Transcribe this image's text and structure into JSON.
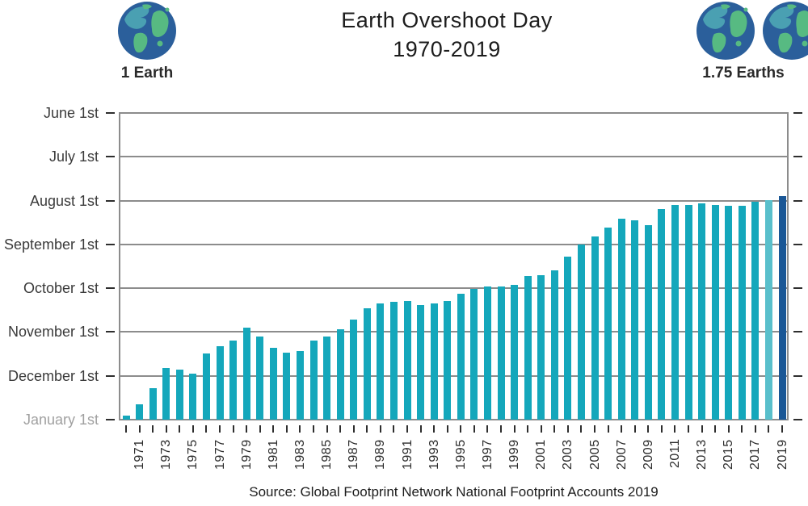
{
  "title": {
    "line1": "Earth Overshoot Day",
    "line2": "1970-2019"
  },
  "left_badge": {
    "label": "1 Earth",
    "icon": "earth-icon"
  },
  "right_badge": {
    "label": "1.75 Earths",
    "icon": "earth-icon-plus-partial-earth"
  },
  "source": "Source: Global Footprint Network National Footprint Accounts 2019",
  "colors": {
    "bar": "#14A7BB",
    "bar_2018_highlight": "#59BFCB",
    "bar_2019_highlight": "#1A5796",
    "grid": "#8C8C8C",
    "axis_ink": "#2E2E2E",
    "muted_label": "#A0A0A0",
    "earth_ocean": "#2B5F9B",
    "earth_land_green": "#57BA82",
    "earth_land_teal": "#4AA0B2"
  },
  "chart_data": {
    "type": "bar",
    "title": "Earth Overshoot Day",
    "subtitle": "1970-2019",
    "xlabel": "",
    "ylabel": "",
    "grid": true,
    "legend": "none",
    "y_axis": {
      "inverted_date_axis": true,
      "top_tick": "June 1st",
      "bottom_tick": "January 1st",
      "ticks": [
        "June 1st",
        "July 1st",
        "August 1st",
        "September 1st",
        "October 1st",
        "November 1st",
        "December 1st",
        "January 1st"
      ],
      "muted_tick": "January 1st",
      "ticks_on_both_sides": true
    },
    "x_axis": {
      "tick_every_year": true,
      "labeled_years": [
        1971,
        1973,
        1975,
        1977,
        1979,
        1981,
        1983,
        1985,
        1987,
        1989,
        1991,
        1993,
        1995,
        1997,
        1999,
        2001,
        2003,
        2005,
        2007,
        2009,
        2011,
        2013,
        2015,
        2017,
        2019
      ]
    },
    "series": [
      {
        "year": 1970,
        "overshoot_date": "Dec 29",
        "day_of_year": 363
      },
      {
        "year": 1971,
        "overshoot_date": "Dec 21",
        "day_of_year": 355
      },
      {
        "year": 1972,
        "overshoot_date": "Dec 10",
        "day_of_year": 344
      },
      {
        "year": 1973,
        "overshoot_date": "Nov 26",
        "day_of_year": 330
      },
      {
        "year": 1974,
        "overshoot_date": "Nov 27",
        "day_of_year": 331
      },
      {
        "year": 1975,
        "overshoot_date": "Nov 30",
        "day_of_year": 334
      },
      {
        "year": 1976,
        "overshoot_date": "Nov 16",
        "day_of_year": 320
      },
      {
        "year": 1977,
        "overshoot_date": "Nov 11",
        "day_of_year": 315
      },
      {
        "year": 1978,
        "overshoot_date": "Nov 7",
        "day_of_year": 311
      },
      {
        "year": 1979,
        "overshoot_date": "Oct 29",
        "day_of_year": 302
      },
      {
        "year": 1980,
        "overshoot_date": "Nov 4",
        "day_of_year": 308
      },
      {
        "year": 1981,
        "overshoot_date": "Nov 12",
        "day_of_year": 316
      },
      {
        "year": 1982,
        "overshoot_date": "Nov 15",
        "day_of_year": 319
      },
      {
        "year": 1983,
        "overshoot_date": "Nov 14",
        "day_of_year": 318
      },
      {
        "year": 1984,
        "overshoot_date": "Nov 7",
        "day_of_year": 311
      },
      {
        "year": 1985,
        "overshoot_date": "Nov 4",
        "day_of_year": 308
      },
      {
        "year": 1986,
        "overshoot_date": "Oct 30",
        "day_of_year": 303
      },
      {
        "year": 1987,
        "overshoot_date": "Oct 23",
        "day_of_year": 296
      },
      {
        "year": 1988,
        "overshoot_date": "Oct 15",
        "day_of_year": 288
      },
      {
        "year": 1989,
        "overshoot_date": "Oct 12",
        "day_of_year": 285
      },
      {
        "year": 1990,
        "overshoot_date": "Oct 11",
        "day_of_year": 284
      },
      {
        "year": 1991,
        "overshoot_date": "Oct 10",
        "day_of_year": 283
      },
      {
        "year": 1992,
        "overshoot_date": "Oct 13",
        "day_of_year": 286
      },
      {
        "year": 1993,
        "overshoot_date": "Oct 12",
        "day_of_year": 285
      },
      {
        "year": 1994,
        "overshoot_date": "Oct 10",
        "day_of_year": 283
      },
      {
        "year": 1995,
        "overshoot_date": "Oct 5",
        "day_of_year": 278
      },
      {
        "year": 1996,
        "overshoot_date": "Oct 2",
        "day_of_year": 275
      },
      {
        "year": 1997,
        "overshoot_date": "Sep 30",
        "day_of_year": 273
      },
      {
        "year": 1998,
        "overshoot_date": "Sep 30",
        "day_of_year": 273
      },
      {
        "year": 1999,
        "overshoot_date": "Sep 29",
        "day_of_year": 272
      },
      {
        "year": 2000,
        "overshoot_date": "Sep 23",
        "day_of_year": 266
      },
      {
        "year": 2001,
        "overshoot_date": "Sep 22",
        "day_of_year": 265
      },
      {
        "year": 2002,
        "overshoot_date": "Sep 19",
        "day_of_year": 262
      },
      {
        "year": 2003,
        "overshoot_date": "Sep 9",
        "day_of_year": 252
      },
      {
        "year": 2004,
        "overshoot_date": "Sep 1",
        "day_of_year": 244
      },
      {
        "year": 2005,
        "overshoot_date": "Aug 26",
        "day_of_year": 238
      },
      {
        "year": 2006,
        "overshoot_date": "Aug 20",
        "day_of_year": 232
      },
      {
        "year": 2007,
        "overshoot_date": "Aug 14",
        "day_of_year": 226
      },
      {
        "year": 2008,
        "overshoot_date": "Aug 15",
        "day_of_year": 227
      },
      {
        "year": 2009,
        "overshoot_date": "Aug 18",
        "day_of_year": 230
      },
      {
        "year": 2010,
        "overshoot_date": "Aug 7",
        "day_of_year": 219
      },
      {
        "year": 2011,
        "overshoot_date": "Aug 4",
        "day_of_year": 216
      },
      {
        "year": 2012,
        "overshoot_date": "Aug 4",
        "day_of_year": 216
      },
      {
        "year": 2013,
        "overshoot_date": "Aug 3",
        "day_of_year": 215
      },
      {
        "year": 2014,
        "overshoot_date": "Aug 4",
        "day_of_year": 216
      },
      {
        "year": 2015,
        "overshoot_date": "Aug 5",
        "day_of_year": 217
      },
      {
        "year": 2016,
        "overshoot_date": "Aug 5",
        "day_of_year": 217
      },
      {
        "year": 2017,
        "overshoot_date": "Aug 2",
        "day_of_year": 214
      },
      {
        "year": 2018,
        "overshoot_date": "Aug 1",
        "day_of_year": 213,
        "color": "#59BFCB"
      },
      {
        "year": 2019,
        "overshoot_date": "Jul 29",
        "day_of_year": 210,
        "color": "#1A5796"
      }
    ]
  }
}
